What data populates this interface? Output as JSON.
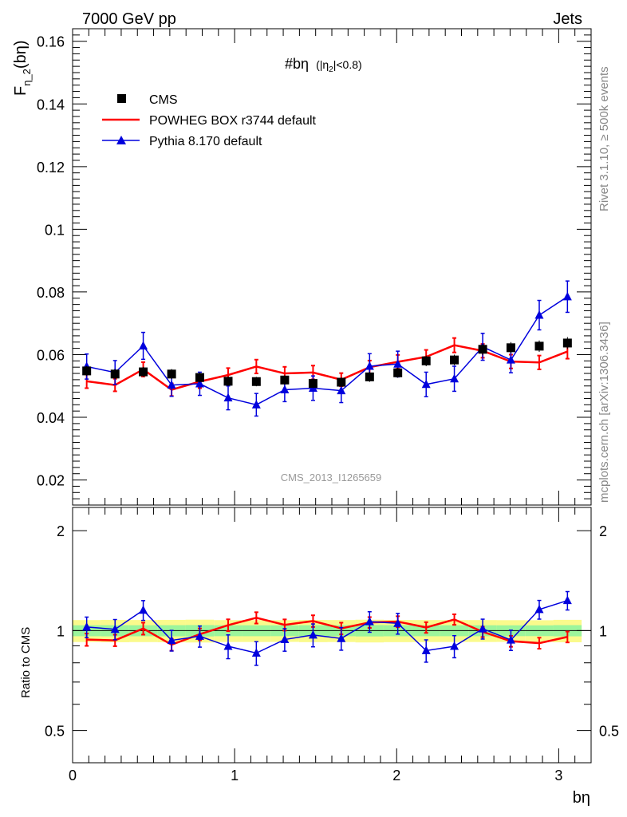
{
  "header": {
    "left": "7000 GeV pp",
    "right": "Jets"
  },
  "side_labels": {
    "rivet": "Rivet 3.1.10, ≥ 500k events",
    "mcplots": "mcplots.cern.ch [arXiv:1306.3436]"
  },
  "chart_data": {
    "type": "scatter",
    "title": "#bη (|η2|<0.8)",
    "title_main": "#bη",
    "title_cut_prefix": "(|η",
    "title_cut_sub": "2",
    "title_cut_suffix": "|<0.8)",
    "ylabel_main": "F",
    "ylabel_sub": "η_2",
    "ylabel_suffix": "(bη)",
    "ratio_ylabel": "Ratio to CMS",
    "xlabel": "bη",
    "analysis_id": "CMS_2013_I1265659",
    "xlim": [
      0,
      3.2
    ],
    "ylim": [
      0.012,
      0.164
    ],
    "ratio_ylim": [
      0.4,
      2.35
    ],
    "ratio_scale": "log",
    "x_ticks": [
      0,
      1,
      2,
      3
    ],
    "y_ticks": [
      0.02,
      0.04,
      0.06,
      0.08,
      0.1,
      0.12,
      0.14,
      0.16
    ],
    "y_tick_labels": [
      "0.02",
      "0.04",
      "0.06",
      "0.08",
      "0.1",
      "0.12",
      "0.14",
      "0.16"
    ],
    "ratio_ticks": [
      0.5,
      1,
      2
    ],
    "ratio_tick_labels": [
      "0.5",
      "1",
      "2"
    ],
    "legend_position": "top-left",
    "x": [
      0.087,
      0.262,
      0.436,
      0.611,
      0.785,
      0.96,
      1.134,
      1.309,
      1.484,
      1.658,
      1.833,
      2.007,
      2.182,
      2.356,
      2.531,
      2.705,
      2.88,
      3.054
    ],
    "series": [
      {
        "name": "CMS",
        "color": "#000000",
        "marker": "square",
        "values": [
          0.0548,
          0.0538,
          0.0545,
          0.0538,
          0.0527,
          0.0515,
          0.0514,
          0.0519,
          0.0508,
          0.0512,
          0.0529,
          0.0542,
          0.058,
          0.0583,
          0.0617,
          0.0622,
          0.0627,
          0.0637
        ],
        "errors": [
          0.0016,
          0.0016,
          0.0016,
          0.0016,
          0.0016,
          0.0015,
          0.0015,
          0.0015,
          0.0015,
          0.0015,
          0.0016,
          0.0016,
          0.0017,
          0.0017,
          0.0018,
          0.0018,
          0.0018,
          0.0019
        ]
      },
      {
        "name": "POWHEG BOX r3744 default",
        "color": "#ff0000",
        "marker": "none",
        "values": [
          0.0515,
          0.0503,
          0.0553,
          0.0488,
          0.0514,
          0.0535,
          0.0562,
          0.054,
          0.0543,
          0.052,
          0.056,
          0.0577,
          0.0593,
          0.063,
          0.0612,
          0.0578,
          0.0575,
          0.061
        ],
        "errors": [
          0.0022,
          0.002,
          0.0023,
          0.002,
          0.0021,
          0.0022,
          0.0022,
          0.0021,
          0.0022,
          0.0021,
          0.0021,
          0.0022,
          0.0022,
          0.0023,
          0.0022,
          0.0022,
          0.0022,
          0.0023
        ]
      },
      {
        "name": "Pythia 8.170 default",
        "color": "#0000dd",
        "marker": "triangle",
        "values": [
          0.0562,
          0.0543,
          0.0628,
          0.0503,
          0.0507,
          0.0462,
          0.044,
          0.0488,
          0.0493,
          0.0485,
          0.0563,
          0.057,
          0.0505,
          0.0523,
          0.0625,
          0.0583,
          0.0726,
          0.0785
        ],
        "errors": [
          0.004,
          0.0038,
          0.0043,
          0.0036,
          0.0037,
          0.0038,
          0.0036,
          0.0038,
          0.0039,
          0.0038,
          0.004,
          0.0041,
          0.0039,
          0.004,
          0.0043,
          0.0041,
          0.0047,
          0.005
        ]
      }
    ],
    "band_colors": {
      "inner": "#9cf59c",
      "outer": "#fafa8c"
    }
  }
}
